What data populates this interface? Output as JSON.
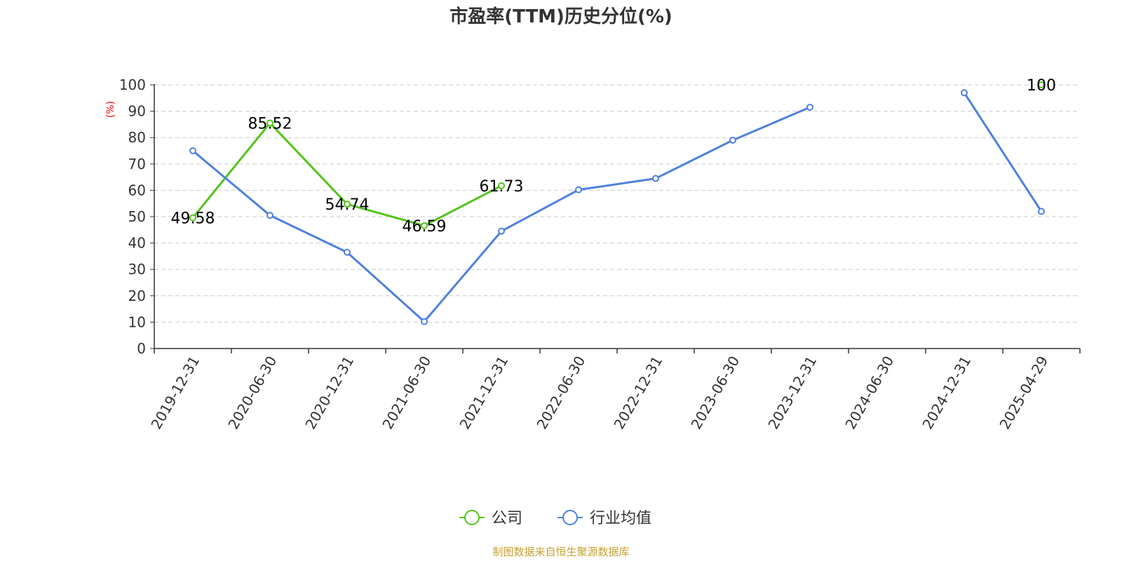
{
  "chart_data": {
    "type": "line",
    "title": "市盈率(TTM)历史分位(%)",
    "ylabel": "(%)",
    "ylim": [
      0,
      100
    ],
    "ytick_step": 10,
    "grid": true,
    "legend_position": "bottom-center",
    "categories": [
      "2019-12-31",
      "2020-06-30",
      "2020-12-31",
      "2021-06-30",
      "2021-12-31",
      "2022-06-30",
      "2022-12-31",
      "2023-06-30",
      "2023-12-31",
      "2024-06-30",
      "2024-12-31",
      "2025-04-29"
    ],
    "series": [
      {
        "name": "公司",
        "color": "#52c41a",
        "show_labels": true,
        "values": [
          49.58,
          85.52,
          54.74,
          46.59,
          61.73,
          null,
          null,
          null,
          null,
          null,
          null,
          100
        ]
      },
      {
        "name": "行业均值",
        "color": "#4f81dd",
        "show_labels": false,
        "values": [
          75,
          50.5,
          36.5,
          10.2,
          44.5,
          60.2,
          64.5,
          79,
          91.5,
          null,
          97,
          52
        ]
      }
    ],
    "source": "制图数据来自恒生聚源数据库"
  },
  "colors": {
    "axis": "#333333",
    "grid": "#cccccc",
    "ylabel": "#ff0000",
    "source": "#c8a032"
  }
}
